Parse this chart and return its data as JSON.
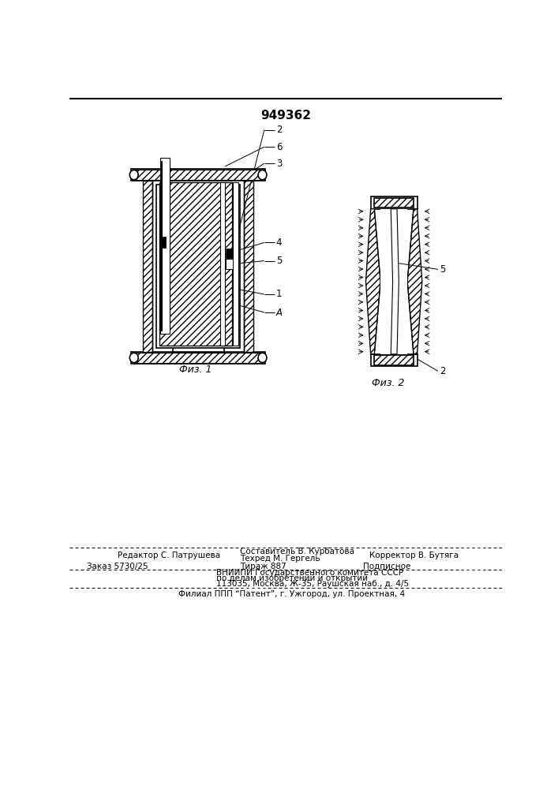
{
  "patent_number": "949362",
  "fig1_caption": "Физ. 1",
  "fig2_caption": "Физ. 2",
  "editor_line": "Редактор С. Патрушева",
  "compiler_line1": "Составитель В. Курбатова",
  "compiler_line2": "Техред М. Гергель",
  "corrector_line": "Корректор В. Бутяга",
  "order_line": "Заказ 5730/25",
  "tirage_line": "Тираж 887",
  "podpisnoe_line": "Подписное",
  "vnipi_line1": "ВНИИПИ Государственного комитета СССР",
  "vnipi_line2": "по делам изобретений и открытий",
  "vnipi_line3": "113035, Москва, Ж-35, Раушская наб., д. 4/5",
  "filial_line": "Филиал ППП “Патент”, г. Ужгород, ул. Проектная, 4",
  "bg_color": "#ffffff"
}
